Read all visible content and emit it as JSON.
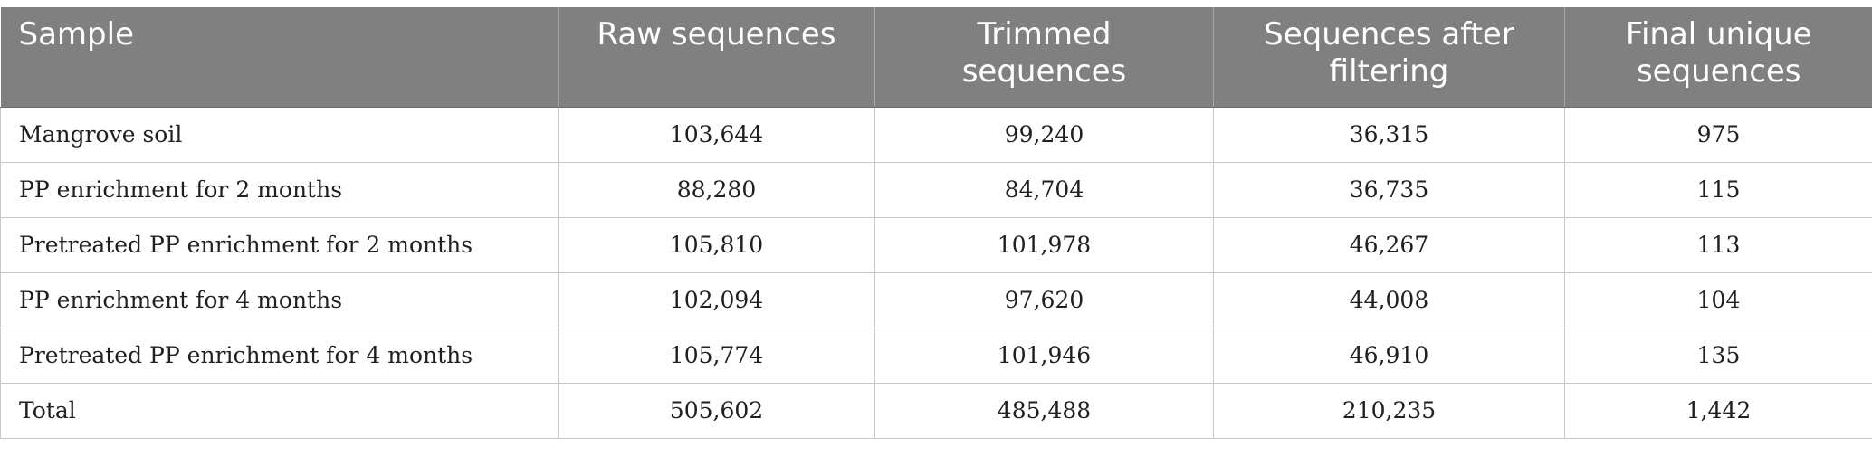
{
  "table": {
    "headers": [
      "Sample",
      "Raw sequences",
      "Trimmed sequences",
      "Sequences after filtering",
      "Final unique sequences"
    ],
    "rows": [
      [
        "Mangrove soil",
        "103,644",
        "99,240",
        "36,315",
        "975"
      ],
      [
        "PP enrichment for 2 months",
        "88,280",
        "84,704",
        "36,735",
        "115"
      ],
      [
        "Pretreated PP enrichment for 2 months",
        "105,810",
        "101,978",
        "46,267",
        "113"
      ],
      [
        "PP enrichment for 4 months",
        "102,094",
        "97,620",
        "44,008",
        "104"
      ],
      [
        "Pretreated PP enrichment for 4 months",
        "105,774",
        "101,946",
        "46,910",
        "135"
      ],
      [
        "Total",
        "505,602",
        "485,488",
        "210,235",
        "1,442"
      ]
    ]
  },
  "colors": {
    "header_bg": "#7f807f",
    "header_text": "#ffffff",
    "grid": "#c8c8c8",
    "body_text": "#1f1f1f"
  }
}
